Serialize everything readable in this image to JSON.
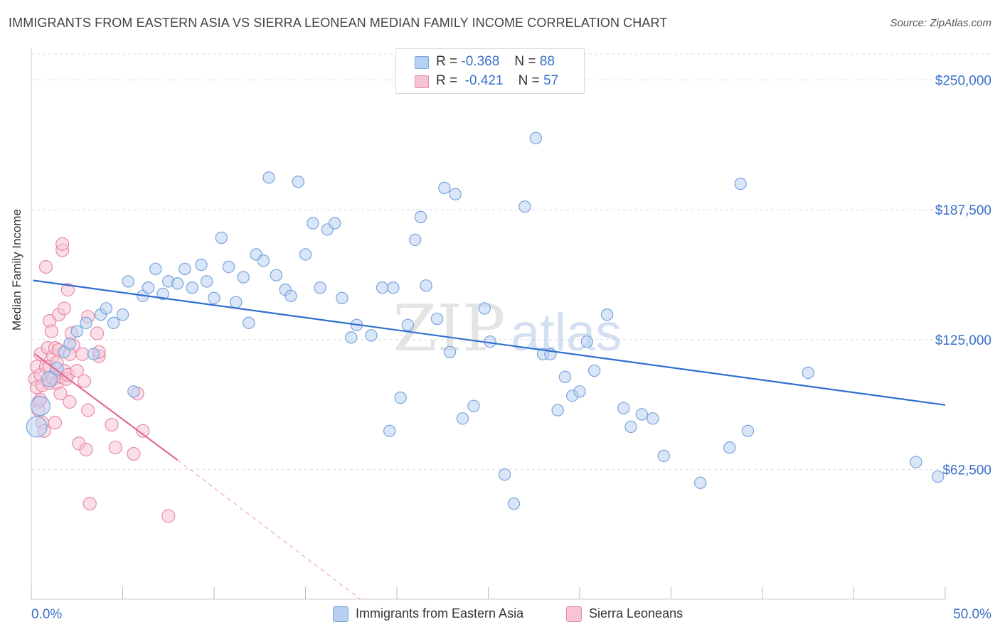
{
  "title": "IMMIGRANTS FROM EASTERN ASIA VS SIERRA LEONEAN MEDIAN FAMILY INCOME CORRELATION CHART",
  "source": "Source: ZipAtlas.com",
  "watermark": {
    "part1": "ZIP",
    "part2": "atlas"
  },
  "legend": {
    "r_label": "R =",
    "n_label": "N =",
    "rows": [
      {
        "r": "-0.368",
        "n": "88"
      },
      {
        "r": "-0.421",
        "n": "57"
      }
    ]
  },
  "colors": {
    "blue_fill": "#b8d1f2",
    "blue_stroke": "#7aa5dc",
    "blue_line": "#2f6fcf",
    "pink_fill": "#f6c4d4",
    "pink_stroke": "#e98aaa",
    "pink_line": "#e26b93",
    "tick_label": "#3a70c8",
    "grid": "#dddddd"
  },
  "chart_data": {
    "type": "scatter",
    "title": "IMMIGRANTS FROM EASTERN ASIA VS SIERRA LEONEAN MEDIAN FAMILY INCOME CORRELATION CHART",
    "xlabel": "",
    "ylabel": "Median Family Income",
    "xlim": [
      0,
      50
    ],
    "ylim": [
      0,
      262500
    ],
    "x_tick_labels": [
      {
        "value": 0,
        "label": "0.0%"
      },
      {
        "value": 50,
        "label": "50.0%"
      }
    ],
    "y_tick_labels": [
      {
        "value": 62500,
        "label": "$62,500"
      },
      {
        "value": 125000,
        "label": "$125,000"
      },
      {
        "value": 187500,
        "label": "$187,500"
      },
      {
        "value": 250000,
        "label": "$250,000"
      }
    ],
    "grid": true,
    "legend_position": "top-center",
    "series": [
      {
        "name": "Immigrants from Eastern Asia",
        "color": "#b8d1f2",
        "r": -0.368,
        "n": 88,
        "trend": {
          "x0": 0.1,
          "y0": 153500,
          "x1": 50,
          "y1": 93500
        },
        "points": [
          [
            0.3,
            83000,
            1.6
          ],
          [
            0.5,
            93000,
            1.5
          ],
          [
            1.0,
            106000,
            1.2
          ],
          [
            1.4,
            111000,
            1.0
          ],
          [
            1.8,
            119000,
            0.9
          ],
          [
            2.1,
            123000,
            0.9
          ],
          [
            2.5,
            129000,
            0.9
          ],
          [
            3.0,
            133000,
            0.9
          ],
          [
            3.4,
            118000,
            0.9
          ],
          [
            3.8,
            137000,
            0.9
          ],
          [
            4.1,
            140000,
            0.9
          ],
          [
            4.5,
            133000,
            0.9
          ],
          [
            5.0,
            137000,
            0.9
          ],
          [
            5.3,
            153000,
            0.9
          ],
          [
            5.6,
            100000,
            0.9
          ],
          [
            6.1,
            146000,
            0.9
          ],
          [
            6.4,
            150000,
            0.9
          ],
          [
            6.8,
            159000,
            0.9
          ],
          [
            7.2,
            147000,
            0.9
          ],
          [
            7.5,
            153000,
            0.9
          ],
          [
            8.0,
            152000,
            0.9
          ],
          [
            8.4,
            159000,
            0.9
          ],
          [
            8.8,
            150000,
            0.9
          ],
          [
            9.3,
            161000,
            0.9
          ],
          [
            9.6,
            153000,
            0.9
          ],
          [
            10.0,
            145000,
            0.9
          ],
          [
            10.4,
            174000,
            0.9
          ],
          [
            10.8,
            160000,
            0.9
          ],
          [
            11.2,
            143000,
            0.9
          ],
          [
            11.6,
            155000,
            0.9
          ],
          [
            11.9,
            133000,
            0.9
          ],
          [
            12.3,
            166000,
            0.9
          ],
          [
            12.7,
            163000,
            0.9
          ],
          [
            13.0,
            203000,
            0.9
          ],
          [
            13.4,
            156000,
            0.9
          ],
          [
            13.9,
            149000,
            0.9
          ],
          [
            14.2,
            146000,
            0.9
          ],
          [
            14.6,
            201000,
            0.9
          ],
          [
            15.0,
            166000,
            0.9
          ],
          [
            15.4,
            181000,
            0.9
          ],
          [
            15.8,
            150000,
            0.9
          ],
          [
            16.2,
            178000,
            0.9
          ],
          [
            16.6,
            181000,
            0.9
          ],
          [
            17.0,
            145000,
            0.9
          ],
          [
            17.5,
            126000,
            0.9
          ],
          [
            17.8,
            132000,
            0.9
          ],
          [
            18.6,
            127000,
            0.9
          ],
          [
            19.2,
            150000,
            0.9
          ],
          [
            19.6,
            81000,
            0.9
          ],
          [
            19.8,
            150000,
            0.9
          ],
          [
            20.2,
            97000,
            0.9
          ],
          [
            20.6,
            132000,
            0.9
          ],
          [
            21.0,
            173000,
            0.9
          ],
          [
            21.3,
            184000,
            0.9
          ],
          [
            21.6,
            151000,
            0.9
          ],
          [
            22.2,
            135000,
            0.9
          ],
          [
            22.6,
            198000,
            0.9
          ],
          [
            22.9,
            119000,
            0.9
          ],
          [
            23.2,
            195000,
            0.9
          ],
          [
            23.6,
            87000,
            0.9
          ],
          [
            24.2,
            93000,
            0.9
          ],
          [
            24.8,
            140000,
            0.9
          ],
          [
            25.1,
            124000,
            0.9
          ],
          [
            25.9,
            60000,
            0.9
          ],
          [
            26.4,
            46000,
            0.9
          ],
          [
            27.0,
            189000,
            0.9
          ],
          [
            27.6,
            222000,
            0.9
          ],
          [
            28.0,
            118000,
            0.9
          ],
          [
            28.4,
            118000,
            0.9
          ],
          [
            28.8,
            91000,
            0.9
          ],
          [
            29.2,
            107000,
            0.9
          ],
          [
            29.6,
            98000,
            0.9
          ],
          [
            30.0,
            100000,
            0.9
          ],
          [
            30.4,
            124000,
            0.9
          ],
          [
            30.8,
            110000,
            0.9
          ],
          [
            31.5,
            137000,
            0.9
          ],
          [
            32.4,
            92000,
            0.9
          ],
          [
            32.8,
            83000,
            0.9
          ],
          [
            33.4,
            89000,
            0.9
          ],
          [
            34.0,
            87000,
            0.9
          ],
          [
            34.6,
            69000,
            0.9
          ],
          [
            36.6,
            56000,
            0.9
          ],
          [
            38.2,
            73000,
            0.9
          ],
          [
            38.8,
            200000,
            0.9
          ],
          [
            39.2,
            81000,
            0.9
          ],
          [
            42.5,
            109000,
            0.9
          ],
          [
            48.4,
            66000,
            0.9
          ],
          [
            49.6,
            59000,
            0.9
          ]
        ]
      },
      {
        "name": "Sierra Leoneans",
        "color": "#f6c4d4",
        "r": -0.421,
        "n": 57,
        "trend": {
          "x0": 0.2,
          "y0": 118000,
          "x1": 8.0,
          "y1": 67000
        },
        "trend_extension": {
          "x0": 8.0,
          "y0": 67000,
          "x1": 18.0,
          "y1": 0
        },
        "points": [
          [
            0.2,
            106000
          ],
          [
            0.3,
            102000
          ],
          [
            0.3,
            112000
          ],
          [
            0.4,
            95000
          ],
          [
            0.4,
            91000
          ],
          [
            0.5,
            108000
          ],
          [
            0.5,
            118000
          ],
          [
            0.6,
            103000
          ],
          [
            0.6,
            85000
          ],
          [
            0.7,
            81000
          ],
          [
            0.8,
            160000
          ],
          [
            0.8,
            112000
          ],
          [
            0.9,
            121000
          ],
          [
            1.0,
            104000
          ],
          [
            1.0,
            134000
          ],
          [
            1.1,
            107000
          ],
          [
            1.1,
            129000
          ],
          [
            1.2,
            117000
          ],
          [
            1.2,
            106000
          ],
          [
            1.3,
            121000
          ],
          [
            1.3,
            85000
          ],
          [
            1.4,
            104000
          ],
          [
            1.5,
            120000
          ],
          [
            1.5,
            137000
          ],
          [
            1.6,
            107000
          ],
          [
            1.6,
            99000
          ],
          [
            1.7,
            168000
          ],
          [
            1.7,
            171000
          ],
          [
            1.8,
            140000
          ],
          [
            1.8,
            110000
          ],
          [
            1.9,
            106000
          ],
          [
            2.0,
            149000
          ],
          [
            2.0,
            108000
          ],
          [
            2.1,
            95000
          ],
          [
            2.2,
            128000
          ],
          [
            2.3,
            122000
          ],
          [
            2.5,
            110000
          ],
          [
            2.6,
            75000
          ],
          [
            2.8,
            118000
          ],
          [
            3.0,
            72000
          ],
          [
            3.1,
            136000
          ],
          [
            3.1,
            91000
          ],
          [
            3.2,
            46000
          ],
          [
            3.6,
            128000
          ],
          [
            3.7,
            117000
          ],
          [
            3.7,
            119000
          ],
          [
            4.4,
            84000
          ],
          [
            4.6,
            73000
          ],
          [
            5.6,
            70000
          ],
          [
            5.8,
            99000
          ],
          [
            6.1,
            81000
          ],
          [
            7.5,
            40000
          ],
          [
            0.5,
            96000
          ],
          [
            1.0,
            112000
          ],
          [
            1.4,
            114000
          ],
          [
            2.1,
            118000
          ],
          [
            2.9,
            105000
          ]
        ]
      }
    ]
  },
  "bottom_legend": {
    "blue_label": "Immigrants from Eastern Asia",
    "pink_label": "Sierra Leoneans"
  }
}
